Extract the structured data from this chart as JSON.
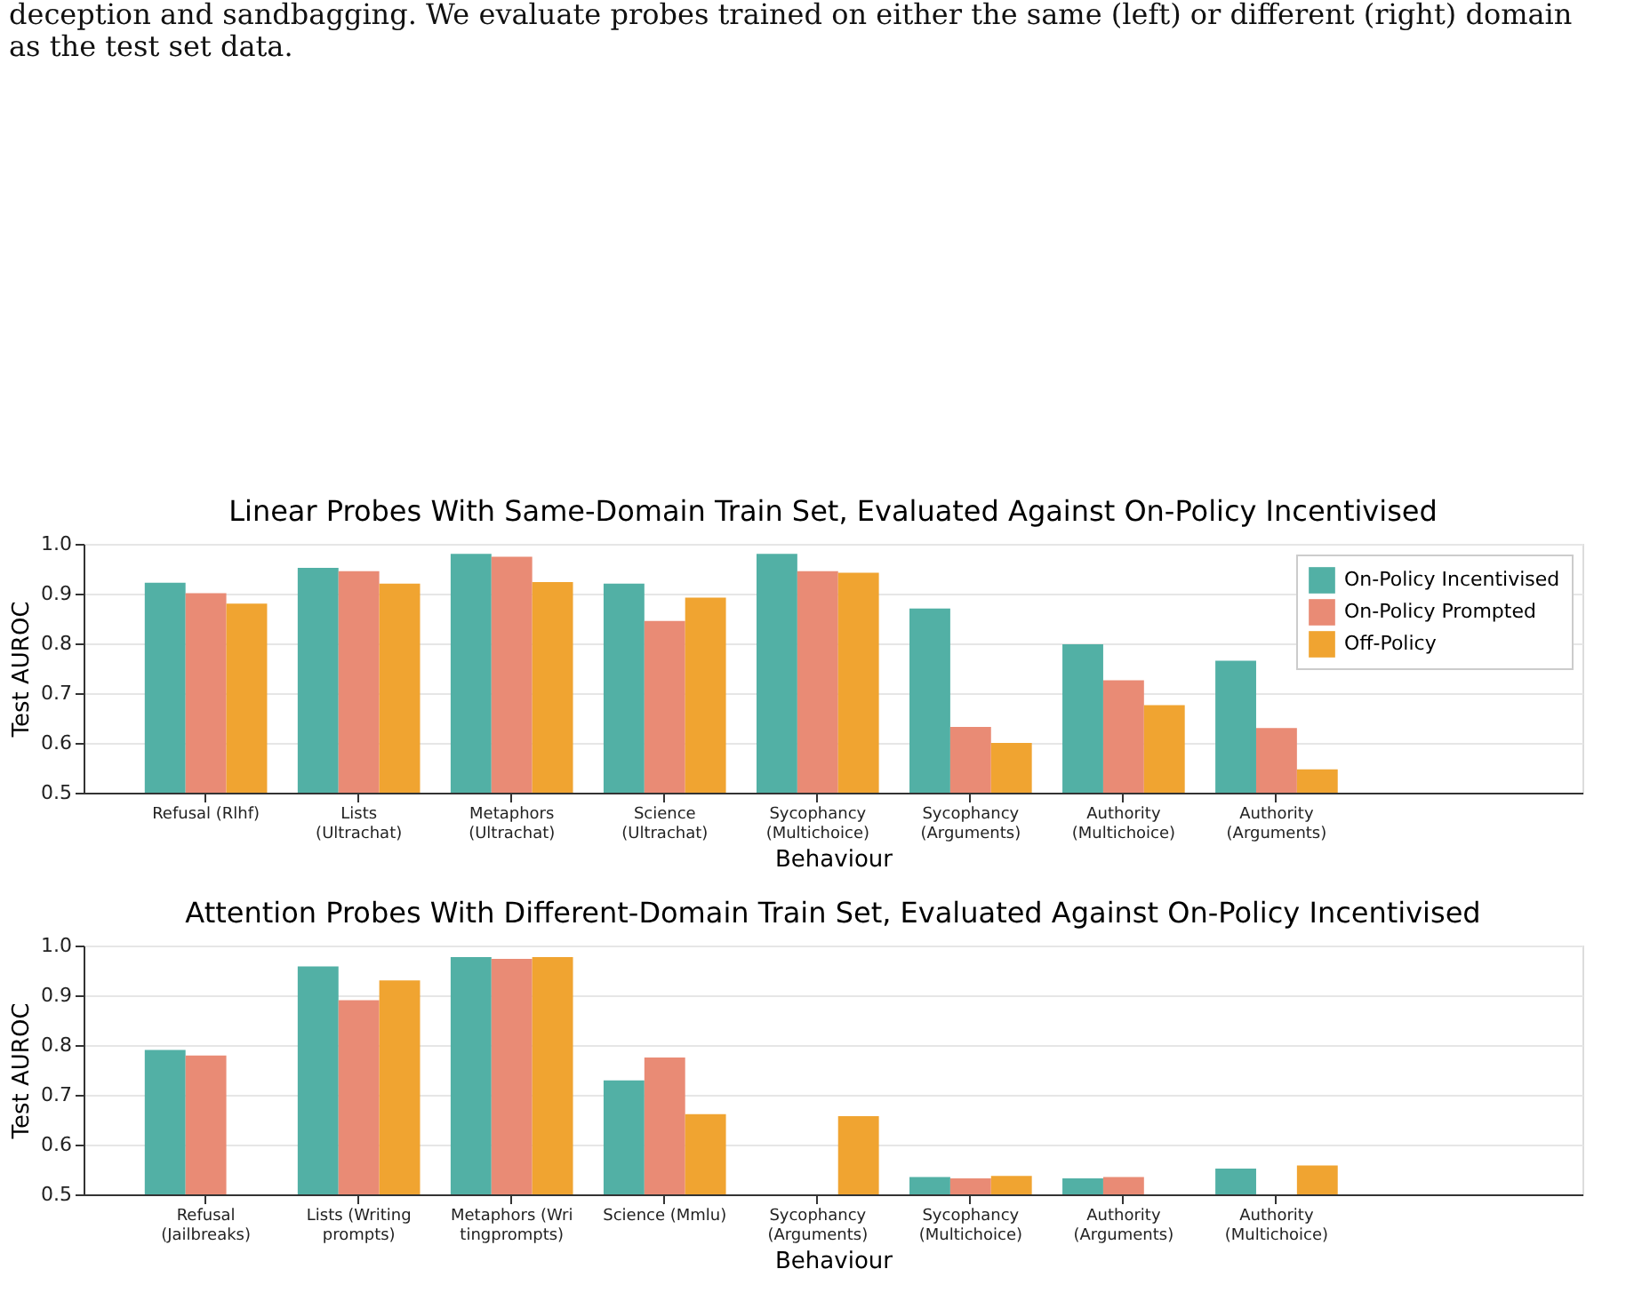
{
  "chart_data": [
    {
      "type": "bar",
      "title": "Linear Probes With Same-Domain Train Set, Evaluated Against On-Policy Incentivised",
      "xlabel": "Behaviour",
      "ylabel": "Test AUROC",
      "annotations": [
        "deception and sandbagging. We evaluate probes trained on either the same (left) or different (right) domain\nas the test set data."
      ],
      "categories": [
        "Refusal (Rlhf)",
        "Lists\n(Ultrachat)",
        "Metaphors\n(Ultrachat)",
        "Science\n(Ultrachat)",
        "Sycophancy\n(Multichoice)",
        "Sycophancy\n(Arguments)",
        "Authority\n(Multichoice)",
        "Authority\n(Arguments)"
      ],
      "series": [
        {
          "name": "On-Policy Incentivised",
          "color": "#52b0a5",
          "values": [
            0.922,
            0.952,
            0.98,
            0.92,
            0.98,
            0.87,
            0.798,
            0.765
          ]
        },
        {
          "name": "On-Policy Prompted",
          "color": "#e98b75",
          "values": [
            0.901,
            0.945,
            0.974,
            0.845,
            0.945,
            0.632,
            0.726,
            0.63
          ]
        },
        {
          "name": "Off-Policy",
          "color": "#f0a431",
          "values": [
            0.88,
            0.92,
            0.923,
            0.892,
            0.942,
            0.6,
            0.676,
            0.547
          ]
        }
      ],
      "ylim": [
        0.5,
        1.0
      ],
      "yticks": [
        0.5,
        0.6,
        0.7,
        0.8,
        0.9,
        {
          "value": 1,
          "label": "1.0"
        }
      ],
      "grid": "y",
      "legend": "top right"
    },
    {
      "type": "bar",
      "title": "Attention Probes With Different-Domain Train Set, Evaluated Against On-Policy Incentivised",
      "xlabel": "Behaviour",
      "ylabel": "Test AUROC",
      "categories": [
        "Refusal\n(Jailbreaks)",
        "Lists (Writing\nprompts)",
        "Metaphors (Wri\ntingprompts)",
        "Science (Mmlu)",
        "Sycophancy\n(Arguments)",
        "Sycophancy\n(Multichoice)",
        "Authority\n(Arguments)",
        "Authority\n(Multichoice)"
      ],
      "series": [
        {
          "name": "On-Policy Incentivised",
          "color": "#52b0a5",
          "values": [
            0.79,
            0.958,
            0.977,
            0.729,
            null,
            0.535,
            0.532,
            0.552
          ]
        },
        {
          "name": "On-Policy Prompted",
          "color": "#e98b75",
          "values": [
            0.779,
            0.89,
            0.973,
            0.775,
            null,
            0.532,
            0.535,
            null
          ]
        },
        {
          "name": "Off-Policy",
          "color": "#f0a431",
          "values": [
            null,
            0.93,
            0.977,
            0.661,
            0.657,
            0.537,
            null,
            0.558
          ]
        }
      ],
      "ylim": [
        0.5,
        1.0
      ],
      "yticks": [
        0.5,
        0.6,
        0.7,
        0.8,
        0.9,
        {
          "value": 1,
          "label": "1.0"
        }
      ],
      "grid": "y",
      "legend": "top right"
    }
  ]
}
